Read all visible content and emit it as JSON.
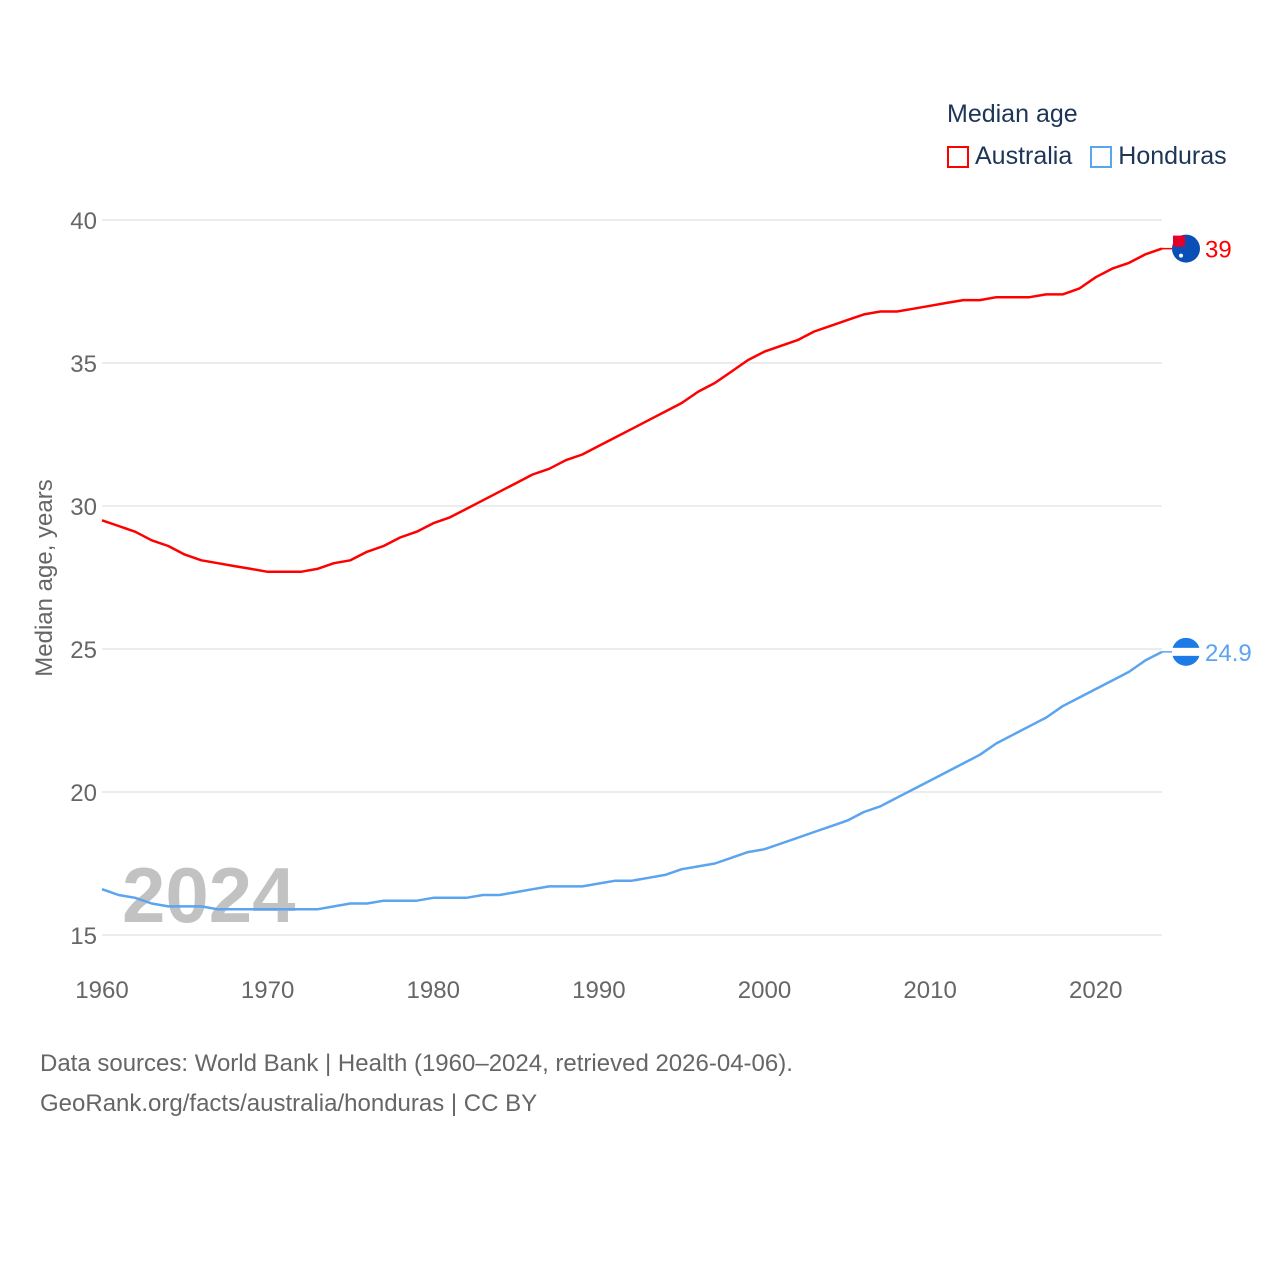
{
  "chart_data": {
    "type": "line",
    "title": "Median age",
    "ylabel": "Median age, years",
    "xlabel": "",
    "xlim": [
      1960,
      2024
    ],
    "ylim": [
      15,
      40
    ],
    "x_ticks": [
      1960,
      1970,
      1980,
      1990,
      2000,
      2010,
      2020
    ],
    "y_ticks": [
      15,
      20,
      25,
      30,
      35,
      40
    ],
    "grid": true,
    "legend_position": "top-right",
    "year_watermark": "2024",
    "x": [
      1960,
      1961,
      1962,
      1963,
      1964,
      1965,
      1966,
      1967,
      1968,
      1969,
      1970,
      1971,
      1972,
      1973,
      1974,
      1975,
      1976,
      1977,
      1978,
      1979,
      1980,
      1981,
      1982,
      1983,
      1984,
      1985,
      1986,
      1987,
      1988,
      1989,
      1990,
      1991,
      1992,
      1993,
      1994,
      1995,
      1996,
      1997,
      1998,
      1999,
      2000,
      2001,
      2002,
      2003,
      2004,
      2005,
      2006,
      2007,
      2008,
      2009,
      2010,
      2011,
      2012,
      2013,
      2014,
      2015,
      2016,
      2017,
      2018,
      2019,
      2020,
      2021,
      2022,
      2023,
      2024
    ],
    "series": [
      {
        "name": "Australia",
        "color": "#ff0000",
        "end_label": "39",
        "values": [
          29.5,
          29.3,
          29.1,
          28.8,
          28.6,
          28.3,
          28.1,
          28.0,
          27.9,
          27.8,
          27.7,
          27.7,
          27.7,
          27.8,
          28.0,
          28.1,
          28.4,
          28.6,
          28.9,
          29.1,
          29.4,
          29.6,
          29.9,
          30.2,
          30.5,
          30.8,
          31.1,
          31.3,
          31.6,
          31.8,
          32.1,
          32.4,
          32.7,
          33.0,
          33.3,
          33.6,
          34.0,
          34.3,
          34.7,
          35.1,
          35.4,
          35.6,
          35.8,
          36.1,
          36.3,
          36.5,
          36.7,
          36.8,
          36.8,
          36.9,
          37.0,
          37.1,
          37.2,
          37.2,
          37.3,
          37.3,
          37.3,
          37.4,
          37.4,
          37.6,
          38.0,
          38.3,
          38.5,
          38.8,
          39.0
        ]
      },
      {
        "name": "Honduras",
        "color": "#5ba4ef",
        "end_label": "24.9",
        "values": [
          16.6,
          16.4,
          16.3,
          16.1,
          16.0,
          16.0,
          16.0,
          15.9,
          15.9,
          15.9,
          15.9,
          15.9,
          15.9,
          15.9,
          16.0,
          16.1,
          16.1,
          16.2,
          16.2,
          16.2,
          16.3,
          16.3,
          16.3,
          16.4,
          16.4,
          16.5,
          16.6,
          16.7,
          16.7,
          16.7,
          16.8,
          16.9,
          16.9,
          17.0,
          17.1,
          17.3,
          17.4,
          17.5,
          17.7,
          17.9,
          18.0,
          18.2,
          18.4,
          18.6,
          18.8,
          19.0,
          19.3,
          19.5,
          19.8,
          20.1,
          20.4,
          20.7,
          21.0,
          21.3,
          21.7,
          22.0,
          22.3,
          22.6,
          23.0,
          23.3,
          23.6,
          23.9,
          24.2,
          24.6,
          24.9
        ]
      }
    ]
  },
  "footer": {
    "line1": "Data sources: World Bank | Health (1960–2024, retrieved 2026-04-06).",
    "line2": "GeoRank.org/facts/australia/honduras | CC BY"
  }
}
